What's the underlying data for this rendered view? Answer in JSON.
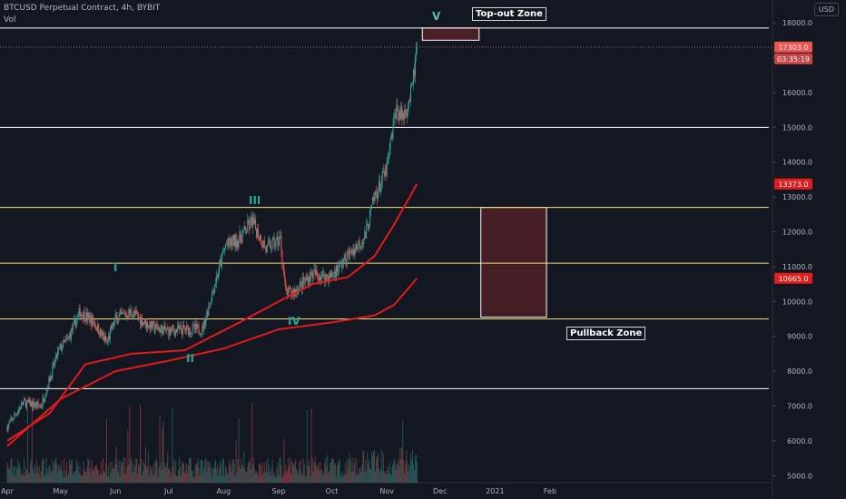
{
  "header": {
    "title": "BTCUSD Perpetual Contract, 4h, BYBIT",
    "indicator": "Vol"
  },
  "currency_button": "USD",
  "annotations": {
    "top_zone": "Top-out Zone",
    "pullback_zone": "Pullback Zone",
    "waves": [
      "I",
      "II",
      "III",
      "IV",
      "V"
    ]
  },
  "colors": {
    "background": "#131722",
    "up": "#26a69a",
    "down": "#ef5350",
    "ma": "#e31b1b",
    "white_line": "#ffffff",
    "yellow_line": "#f5e17a",
    "zone_fill": "#4a1f25"
  },
  "chart_data": {
    "type": "candlestick",
    "x_ticks": [
      "Apr",
      "May",
      "Jun",
      "Jul",
      "Aug",
      "Sep",
      "Oct",
      "Nov",
      "Dec",
      "2021",
      "Feb"
    ],
    "y_ticks": [
      5000,
      6000,
      7000,
      8000,
      9000,
      10000,
      11000,
      12000,
      13000,
      14000,
      15000,
      16000,
      17000,
      18000
    ],
    "ylim": [
      4800,
      18550
    ],
    "price_labels": {
      "last": "17303.0",
      "countdown": "03:35:19",
      "ma_fast": "13373.0",
      "ma_slow": "10665.0"
    },
    "horizontal_levels": {
      "white": [
        17850,
        15000,
        7500
      ],
      "yellow": [
        12700,
        11100,
        9500
      ]
    },
    "zones": {
      "top_out": {
        "from": "Nov 21",
        "to": "Dec 23",
        "low": 17500,
        "high": 17850
      },
      "pullback": {
        "from": "Dec 24",
        "to": "Jan 30",
        "low": 9550,
        "high": 12700
      }
    },
    "price_path": [
      [
        "Apr 1",
        6400
      ],
      [
        "Apr 10",
        7100
      ],
      [
        "Apr 20",
        7000
      ],
      [
        "Apr 30",
        8600
      ],
      [
        "May 5",
        8900
      ],
      [
        "May 12",
        9700
      ],
      [
        "May 20",
        9400
      ],
      [
        "May 27",
        8800
      ],
      [
        "Jun 1",
        9500
      ],
      [
        "Jun 10",
        9700
      ],
      [
        "Jun 20",
        9300
      ],
      [
        "Jun 30",
        9150
      ],
      [
        "Jul 10",
        9200
      ],
      [
        "Jul 20",
        9200
      ],
      [
        "Jul 27",
        10500
      ],
      [
        "Aug 2",
        11600
      ],
      [
        "Aug 10",
        11800
      ],
      [
        "Aug 17",
        12300
      ],
      [
        "Aug 25",
        11500
      ],
      [
        "Sep 2",
        11800
      ],
      [
        "Sep 5",
        10200
      ],
      [
        "Sep 10",
        10300
      ],
      [
        "Sep 20",
        10800
      ],
      [
        "Sep 30",
        10700
      ],
      [
        "Oct 10",
        11300
      ],
      [
        "Oct 20",
        11900
      ],
      [
        "Oct 25",
        13000
      ],
      [
        "Nov 1",
        13800
      ],
      [
        "Nov 6",
        15500
      ],
      [
        "Nov 10",
        15300
      ],
      [
        "Nov 15",
        16000
      ],
      [
        "Nov 18",
        17303
      ]
    ],
    "ma_fast": [
      [
        "Apr 1",
        6000
      ],
      [
        "Apr 25",
        6800
      ],
      [
        "May 15",
        8200
      ],
      [
        "Jun 10",
        8500
      ],
      [
        "Jul 10",
        8600
      ],
      [
        "Aug 10",
        9400
      ],
      [
        "Sep 1",
        10000
      ],
      [
        "Sep 20",
        10500
      ],
      [
        "Oct 10",
        10700
      ],
      [
        "Oct 25",
        11300
      ],
      [
        "Nov 5",
        12200
      ],
      [
        "Nov 18",
        13373
      ]
    ],
    "ma_slow": [
      [
        "Apr 1",
        5850
      ],
      [
        "May 1",
        7200
      ],
      [
        "Jun 1",
        8000
      ],
      [
        "Jul 1",
        8300
      ],
      [
        "Aug 1",
        8650
      ],
      [
        "Sep 1",
        9200
      ],
      [
        "Oct 1",
        9400
      ],
      [
        "Oct 25",
        9600
      ],
      [
        "Nov 5",
        9900
      ],
      [
        "Nov 18",
        10665
      ]
    ]
  }
}
